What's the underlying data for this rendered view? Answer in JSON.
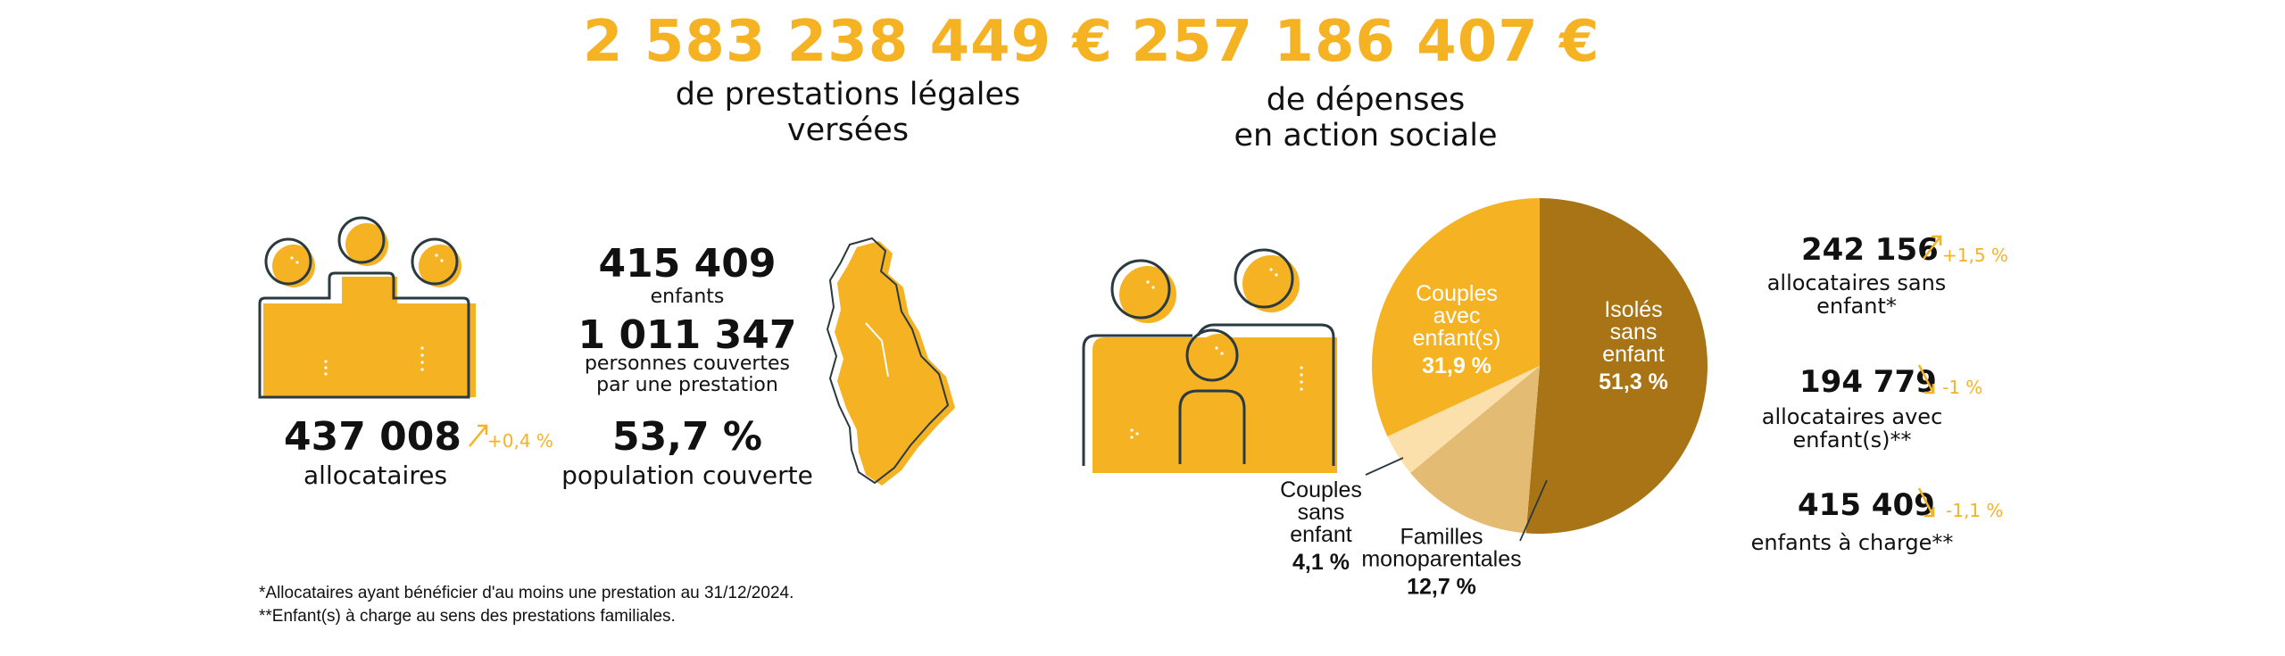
{
  "header": {
    "left_amount": "2 583 238 449 €",
    "left_sub_1": "de prestations légales",
    "left_sub_2": "versées",
    "right_amount": "257 186 407 €",
    "right_sub_1": "de dépenses",
    "right_sub_2": "en action sociale"
  },
  "allocataires": {
    "value": "437 008",
    "trend": "+0,4 %",
    "label": "allocataires"
  },
  "population": {
    "enfants_value": "415 409",
    "enfants_label": "enfants",
    "couverts_value": "1 011 347",
    "couverts_label_1": "personnes couvertes",
    "couverts_label_2": "par une prestation",
    "taux_value": "53,7 %",
    "taux_label": "population couverte"
  },
  "right_stats": [
    {
      "value": "242 156",
      "trend": "+1,5 %",
      "label_1": "allocataires sans",
      "label_2": "enfant*"
    },
    {
      "value": "194 779",
      "trend": "-1 %",
      "label_1": "allocataires avec",
      "label_2": "enfant(s)**"
    },
    {
      "value": "415 409",
      "trend": "-1,1 %",
      "label_1": "enfants à charge**",
      "label_2": ""
    }
  ],
  "footnotes": {
    "note1": "*Allocataires ayant bénéficier d'au moins une prestation au 31/12/2024.",
    "note2": "**Enfant(s) à charge au sens des prestations familiales."
  },
  "colors": {
    "accent": "#f5b324",
    "dark_brown": "#a87415",
    "tan": "#e3bb72",
    "cream": "#fbe0ab",
    "outline": "#2b3a40"
  },
  "icons": [
    "family-icon",
    "map-icon",
    "family-children-icon"
  ],
  "chart_data": {
    "type": "pie",
    "title": "",
    "series": [
      {
        "values": [
          51.3,
          12.7,
          4.1,
          31.9
        ],
        "labels": [
          "Isolés sans enfant",
          "Familles monoparentales",
          "Couples sans enfant",
          "Couples avec enfant(s)"
        ],
        "display": [
          "51,3 %",
          "12,7 %",
          "4,1 %",
          "31,9 %"
        ],
        "colors": [
          "#a87415",
          "#e3bb72",
          "#fbe0ab",
          "#f5b324"
        ]
      }
    ],
    "label_lines": [
      [
        "Isolés",
        "sans",
        "enfant"
      ],
      [
        "Familles",
        "monoparentales"
      ],
      [
        "Couples",
        "sans",
        "enfant"
      ],
      [
        "Couples",
        "avec",
        "enfant(s)"
      ]
    ]
  }
}
